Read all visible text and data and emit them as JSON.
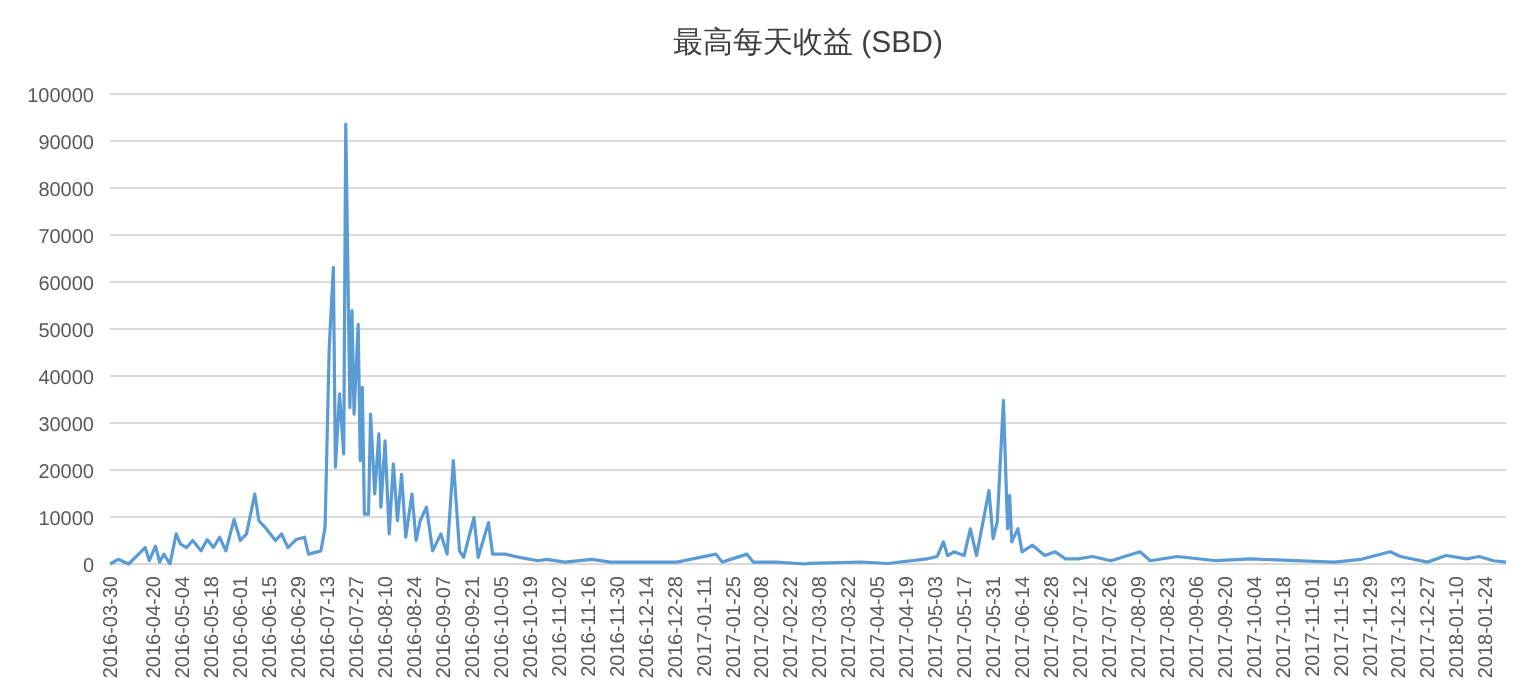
{
  "chart_data": {
    "type": "line",
    "title": "最高每天收益 (SBD)",
    "grid": "y",
    "color": "#5b9bd5",
    "x": [
      "2016-03-30",
      "2016-04-03",
      "2016-04-08",
      "2016-04-16",
      "2016-04-18",
      "2016-04-21",
      "2016-04-23",
      "2016-04-25",
      "2016-04-28",
      "2016-05-01",
      "2016-05-03",
      "2016-05-06",
      "2016-05-09",
      "2016-05-13",
      "2016-05-16",
      "2016-05-19",
      "2016-05-22",
      "2016-05-25",
      "2016-05-29",
      "2016-06-01",
      "2016-06-04",
      "2016-06-08",
      "2016-06-10",
      "2016-06-13",
      "2016-06-18",
      "2016-06-21",
      "2016-06-24",
      "2016-06-28",
      "2016-07-02",
      "2016-07-04",
      "2016-07-10",
      "2016-07-12",
      "2016-07-14",
      "2016-07-16",
      "2016-07-17",
      "2016-07-19",
      "2016-07-21",
      "2016-07-22",
      "2016-07-24",
      "2016-07-25",
      "2016-07-26",
      "2016-07-28",
      "2016-07-29",
      "2016-07-30",
      "2016-07-31",
      "2016-08-02",
      "2016-08-03",
      "2016-08-05",
      "2016-08-07",
      "2016-08-08",
      "2016-08-10",
      "2016-08-12",
      "2016-08-14",
      "2016-08-16",
      "2016-08-18",
      "2016-08-20",
      "2016-08-23",
      "2016-08-25",
      "2016-08-27",
      "2016-08-30",
      "2016-09-02",
      "2016-09-06",
      "2016-09-09",
      "2016-09-12",
      "2016-09-15",
      "2016-09-17",
      "2016-09-22",
      "2016-09-24",
      "2016-09-29",
      "2016-10-01",
      "2016-10-07",
      "2016-10-14",
      "2016-10-23",
      "2016-10-27",
      "2016-11-05",
      "2016-11-18",
      "2016-11-27",
      "2016-12-16",
      "2016-12-29",
      "2017-01-17",
      "2017-01-20",
      "2017-02-01",
      "2017-02-04",
      "2017-02-15",
      "2017-03-01",
      "2017-03-03",
      "2017-03-28",
      "2017-04-10",
      "2017-04-29",
      "2017-05-04",
      "2017-05-07",
      "2017-05-09",
      "2017-05-12",
      "2017-05-17",
      "2017-05-20",
      "2017-05-23",
      "2017-05-29",
      "2017-05-31",
      "2017-06-02",
      "2017-06-05",
      "2017-06-07",
      "2017-06-08",
      "2017-06-09",
      "2017-06-12",
      "2017-06-14",
      "2017-06-19",
      "2017-06-25",
      "2017-06-30",
      "2017-07-05",
      "2017-07-11",
      "2017-07-18",
      "2017-07-27",
      "2017-08-10",
      "2017-08-15",
      "2017-08-28",
      "2017-09-16",
      "2017-10-02",
      "2017-10-24",
      "2017-11-12",
      "2017-11-25",
      "2017-12-09",
      "2017-12-14",
      "2017-12-27",
      "2018-01-05",
      "2018-01-15",
      "2018-01-21",
      "2018-01-28",
      "2018-02-03"
    ],
    "values": [
      0,
      1000,
      0,
      3500,
      700,
      3800,
      400,
      2100,
      0,
      6400,
      4300,
      3500,
      5000,
      2800,
      5200,
      3500,
      5700,
      2800,
      9500,
      5000,
      6400,
      14900,
      9200,
      7800,
      5000,
      6400,
      3500,
      5200,
      5700,
      2100,
      2800,
      7800,
      46100,
      63100,
      20600,
      36200,
      23400,
      93600,
      33300,
      53900,
      31900,
      51000,
      22000,
      37600,
      10600,
      10600,
      31900,
      14900,
      27700,
      12100,
      26200,
      6400,
      21300,
      9200,
      19100,
      5700,
      14900,
      5000,
      9200,
      12100,
      2800,
      6400,
      2100,
      22000,
      2800,
      1400,
      9900,
      1400,
      8800,
      2100,
      2100,
      1400,
      700,
      1000,
      400,
      1000,
      400,
      400,
      400,
      2100,
      400,
      2100,
      400,
      400,
      0,
      140,
      430,
      100,
      1100,
      1600,
      4700,
      1800,
      2600,
      1800,
      7500,
      1800,
      15600,
      5400,
      8900,
      34800,
      7500,
      14600,
      4700,
      7500,
      2600,
      4000,
      1800,
      2600,
      1100,
      1100,
      1600,
      700,
      2600,
      700,
      1600,
      700,
      1100,
      700,
      400,
      1000,
      2600,
      1600,
      400,
      1800,
      1100,
      1600,
      700,
      400
    ],
    "xlim": [
      "2016-03-30",
      "2018-02-03"
    ],
    "xticks": [
      "2016-03-30",
      "2016-04-20",
      "2016-05-04",
      "2016-05-18",
      "2016-06-01",
      "2016-06-15",
      "2016-06-29",
      "2016-07-13",
      "2016-07-27",
      "2016-08-10",
      "2016-08-24",
      "2016-09-07",
      "2016-09-21",
      "2016-10-05",
      "2016-10-19",
      "2016-11-02",
      "2016-11-16",
      "2016-11-30",
      "2016-12-14",
      "2016-12-28",
      "2017-01-11",
      "2017-01-25",
      "2017-02-08",
      "2017-02-22",
      "2017-03-08",
      "2017-03-22",
      "2017-04-05",
      "2017-04-19",
      "2017-05-03",
      "2017-05-17",
      "2017-05-31",
      "2017-06-14",
      "2017-06-28",
      "2017-07-12",
      "2017-07-26",
      "2017-08-09",
      "2017-08-23",
      "2017-09-06",
      "2017-09-20",
      "2017-10-04",
      "2017-10-18",
      "2017-11-01",
      "2017-11-15",
      "2017-11-29",
      "2017-12-13",
      "2017-12-27",
      "2018-01-10",
      "2018-01-24"
    ],
    "ylim": [
      0,
      100000
    ],
    "yticks": [
      0,
      10000,
      20000,
      30000,
      40000,
      50000,
      60000,
      70000,
      80000,
      90000,
      100000
    ]
  }
}
